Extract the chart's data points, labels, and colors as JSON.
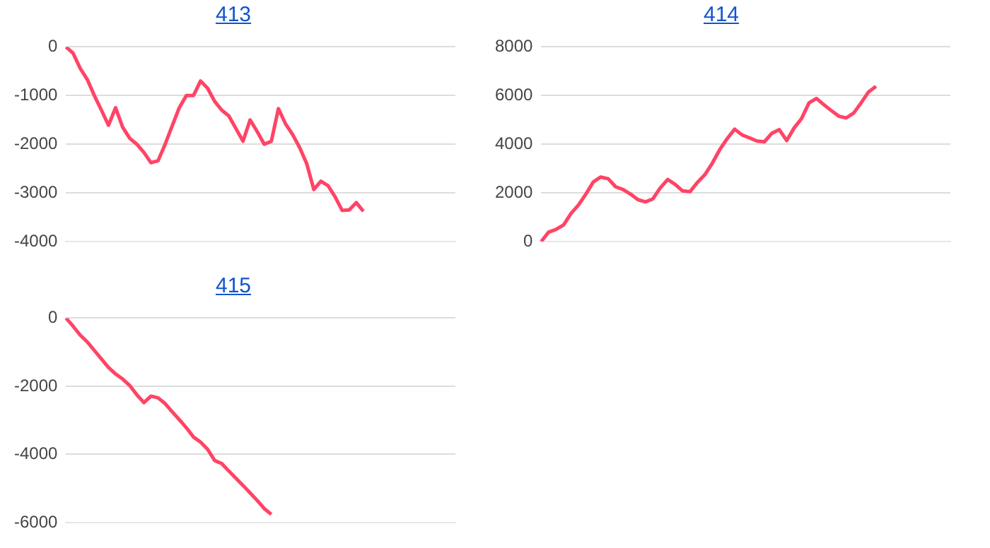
{
  "chart_data": [
    {
      "type": "line",
      "title": "413",
      "categories": [
        null,
        null,
        null,
        null,
        null,
        null,
        null,
        null,
        null,
        null,
        null,
        null,
        null,
        null,
        null,
        null,
        null,
        null,
        null,
        null,
        null,
        null,
        null,
        null,
        null,
        null,
        null,
        null,
        null,
        null,
        null,
        null,
        null,
        null,
        null,
        null,
        null,
        null,
        null,
        null,
        null,
        null,
        null,
        null,
        null,
        null,
        null,
        null,
        null,
        null,
        null,
        null,
        null,
        null,
        null,
        null
      ],
      "series": [
        {
          "color": "#ff4466",
          "values": [
            0,
            -130,
            -440,
            -670,
            -1000,
            -1300,
            -1610,
            -1250,
            -1650,
            -1880,
            -2000,
            -2170,
            -2380,
            -2340,
            -2000,
            -1620,
            -1250,
            -1000,
            -1000,
            -700,
            -850,
            -1120,
            -1300,
            -1420,
            -1680,
            -1940,
            -1500,
            -1740,
            -2000,
            -1940,
            -1270,
            -1580,
            -1800,
            -2070,
            -2400,
            -2930,
            -2760,
            -2850,
            -3080,
            -3360,
            -3350,
            -3200,
            -3380,
            null,
            null,
            null,
            null,
            null,
            null,
            null,
            null,
            null,
            null,
            null,
            null,
            null
          ]
        }
      ],
      "ylim": [
        -4000,
        0
      ],
      "yticks": [
        -4000,
        -3000,
        -2000,
        -1000,
        0
      ],
      "grid": "y",
      "tick_labels": "y"
    },
    {
      "type": "line",
      "title": "414",
      "categories": [
        null,
        null,
        null,
        null,
        null,
        null,
        null,
        null,
        null,
        null,
        null,
        null,
        null,
        null,
        null,
        null,
        null,
        null,
        null,
        null,
        null,
        null,
        null,
        null,
        null,
        null,
        null,
        null,
        null,
        null,
        null,
        null,
        null,
        null,
        null,
        null,
        null,
        null,
        null,
        null,
        null,
        null,
        null,
        null,
        null,
        null,
        null,
        null,
        null,
        null,
        null,
        null,
        null,
        null,
        null,
        null
      ],
      "series": [
        {
          "color": "#ff4466",
          "values": [
            0,
            390,
            500,
            680,
            1150,
            1500,
            1950,
            2450,
            2650,
            2580,
            2250,
            2140,
            1950,
            1720,
            1630,
            1750,
            2200,
            2550,
            2350,
            2080,
            2050,
            2430,
            2750,
            3220,
            3780,
            4230,
            4620,
            4380,
            4260,
            4130,
            4100,
            4450,
            4600,
            4150,
            4670,
            5060,
            5700,
            5880,
            5620,
            5380,
            5150,
            5080,
            5280,
            5700,
            6150,
            6380,
            null,
            null,
            null,
            null,
            null,
            null,
            null,
            null,
            null,
            null
          ]
        }
      ],
      "ylim": [
        0,
        8000
      ],
      "yticks": [
        0,
        2000,
        4000,
        6000,
        8000
      ],
      "grid": "y",
      "tick_labels": "y"
    },
    {
      "type": "line",
      "title": "415",
      "categories": [
        null,
        null,
        null,
        null,
        null,
        null,
        null,
        null,
        null,
        null,
        null,
        null,
        null,
        null,
        null,
        null,
        null,
        null,
        null,
        null,
        null,
        null,
        null,
        null,
        null,
        null,
        null,
        null,
        null,
        null,
        null,
        null,
        null,
        null,
        null,
        null,
        null,
        null,
        null,
        null,
        null,
        null,
        null,
        null,
        null,
        null,
        null,
        null,
        null,
        null,
        null,
        null,
        null,
        null,
        null,
        null
      ],
      "series": [
        {
          "color": "#ff4466",
          "values": [
            0,
            -240,
            -500,
            -700,
            -950,
            -1200,
            -1450,
            -1640,
            -1790,
            -1980,
            -2250,
            -2480,
            -2290,
            -2340,
            -2510,
            -2750,
            -2980,
            -3220,
            -3490,
            -3640,
            -3850,
            -4180,
            -4270,
            -4490,
            -4700,
            -4910,
            -5130,
            -5350,
            -5590,
            -5760,
            null,
            null,
            null,
            null,
            null,
            null,
            null,
            null,
            null,
            null,
            null,
            null,
            null,
            null,
            null,
            null,
            null,
            null,
            null,
            null,
            null,
            null,
            null,
            null,
            null,
            null
          ]
        }
      ],
      "ylim": [
        -6000,
        0
      ],
      "yticks": [
        -6000,
        -4000,
        -2000,
        0
      ],
      "grid": "y",
      "tick_labels": "y"
    }
  ]
}
